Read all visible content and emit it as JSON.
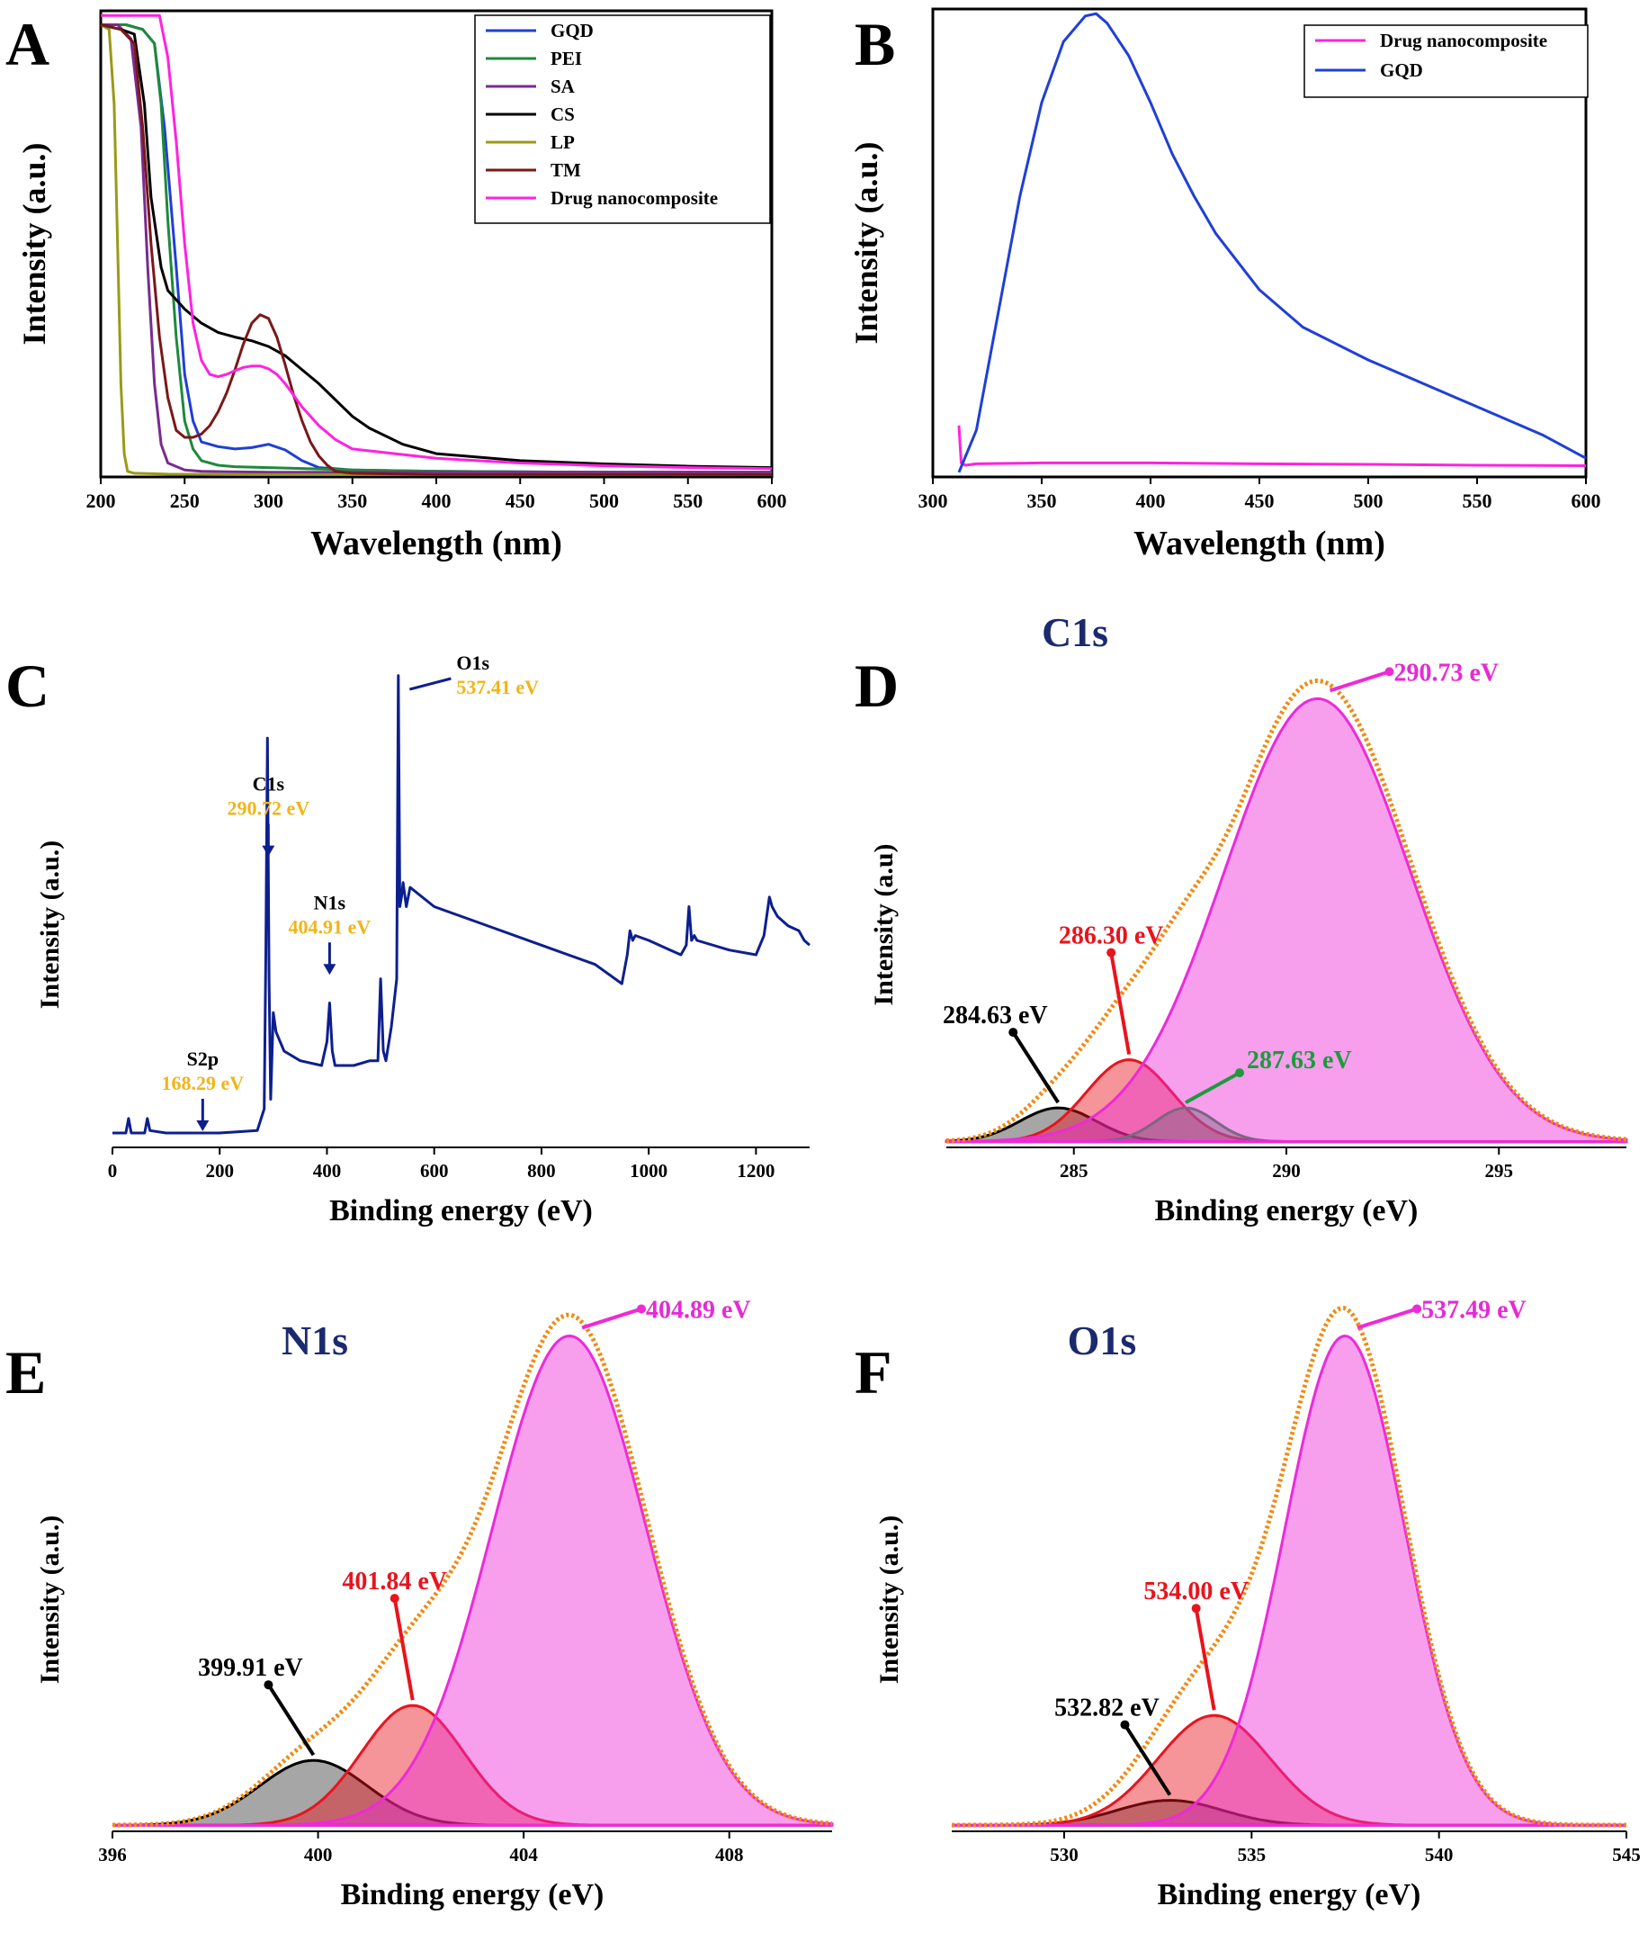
{
  "figure": {
    "panel_count": 6
  },
  "chart_data": [
    {
      "id": "A",
      "type": "line",
      "panel_label": "A",
      "xlabel": "Wavelength (nm)",
      "ylabel": "Intensity (a.u.)",
      "xlim": [
        200,
        600
      ],
      "ylim": [
        0,
        1.0
      ],
      "xticks": [
        200,
        250,
        300,
        350,
        400,
        450,
        500,
        550,
        600
      ],
      "grid": false,
      "legend": "top-right",
      "series": [
        {
          "name": "GQD",
          "color": "#1f3fd6",
          "x": [
            200,
            215,
            225,
            232,
            238,
            245,
            250,
            255,
            260,
            270,
            280,
            290,
            300,
            310,
            320,
            330,
            350,
            400,
            500,
            600
          ],
          "values": [
            0.97,
            0.97,
            0.96,
            0.93,
            0.75,
            0.45,
            0.22,
            0.12,
            0.075,
            0.065,
            0.06,
            0.063,
            0.07,
            0.058,
            0.035,
            0.02,
            0.015,
            0.012,
            0.01,
            0.01
          ]
        },
        {
          "name": "PEI",
          "color": "#1e8a3a",
          "x": [
            200,
            215,
            225,
            232,
            236,
            240,
            245,
            250,
            255,
            260,
            270,
            280,
            300,
            350,
            400,
            500,
            600
          ],
          "values": [
            0.97,
            0.97,
            0.96,
            0.93,
            0.8,
            0.55,
            0.3,
            0.12,
            0.06,
            0.035,
            0.025,
            0.022,
            0.02,
            0.015,
            0.012,
            0.01,
            0.01
          ]
        },
        {
          "name": "SA",
          "color": "#7b2a8f",
          "x": [
            200,
            210,
            218,
            224,
            228,
            232,
            236,
            240,
            250,
            260,
            300,
            400,
            600
          ],
          "values": [
            0.97,
            0.97,
            0.94,
            0.75,
            0.45,
            0.2,
            0.07,
            0.03,
            0.015,
            0.012,
            0.01,
            0.01,
            0.01
          ]
        },
        {
          "name": "CS",
          "color": "#000000",
          "x": [
            200,
            212,
            220,
            226,
            230,
            236,
            240,
            250,
            260,
            270,
            280,
            290,
            300,
            310,
            320,
            330,
            340,
            350,
            360,
            380,
            400,
            450,
            500,
            550,
            600
          ],
          "values": [
            0.97,
            0.96,
            0.95,
            0.8,
            0.6,
            0.45,
            0.4,
            0.36,
            0.33,
            0.31,
            0.3,
            0.292,
            0.28,
            0.26,
            0.23,
            0.2,
            0.165,
            0.13,
            0.105,
            0.07,
            0.05,
            0.035,
            0.028,
            0.023,
            0.02
          ]
        },
        {
          "name": "LP",
          "color": "#9a9a18",
          "x": [
            200,
            205,
            208,
            210,
            212,
            214,
            216,
            220,
            240,
            300,
            600
          ],
          "values": [
            0.97,
            0.96,
            0.8,
            0.5,
            0.2,
            0.05,
            0.012,
            0.008,
            0.006,
            0.005,
            0.005
          ]
        },
        {
          "name": "TM",
          "color": "#7a1818",
          "x": [
            200,
            212,
            220,
            225,
            230,
            235,
            240,
            245,
            250,
            255,
            260,
            265,
            270,
            275,
            280,
            285,
            290,
            295,
            300,
            305,
            310,
            315,
            320,
            325,
            330,
            335,
            340,
            350,
            400,
            600
          ],
          "values": [
            0.97,
            0.96,
            0.93,
            0.75,
            0.5,
            0.3,
            0.17,
            0.1,
            0.085,
            0.085,
            0.092,
            0.11,
            0.14,
            0.18,
            0.23,
            0.285,
            0.33,
            0.348,
            0.34,
            0.3,
            0.24,
            0.175,
            0.12,
            0.075,
            0.045,
            0.025,
            0.012,
            0.008,
            0.005,
            0.005
          ]
        },
        {
          "name": "Drug nanocomposite",
          "color": "#ff22e0",
          "x": [
            200,
            235,
            240,
            245,
            250,
            255,
            260,
            265,
            270,
            275,
            280,
            285,
            290,
            295,
            300,
            305,
            310,
            315,
            320,
            330,
            340,
            350,
            400,
            450,
            500,
            550,
            600
          ],
          "values": [
            0.99,
            0.99,
            0.9,
            0.72,
            0.5,
            0.33,
            0.25,
            0.22,
            0.215,
            0.22,
            0.228,
            0.235,
            0.238,
            0.238,
            0.232,
            0.22,
            0.2,
            0.175,
            0.15,
            0.11,
            0.08,
            0.06,
            0.04,
            0.03,
            0.024,
            0.02,
            0.018
          ]
        }
      ]
    },
    {
      "id": "B",
      "type": "line",
      "panel_label": "B",
      "xlabel": "Wavelength (nm)",
      "ylabel": "Intensity (a.u.)",
      "xlim": [
        300,
        600
      ],
      "ylim": [
        0,
        1.0
      ],
      "xticks": [
        300,
        350,
        400,
        450,
        500,
        550,
        600
      ],
      "grid": false,
      "legend": "top-right",
      "series": [
        {
          "name": "Drug nanocomposite",
          "color": "#ff22e0",
          "x": [
            312,
            313,
            315,
            320,
            350,
            400,
            450,
            500,
            550,
            600
          ],
          "values": [
            0.11,
            0.03,
            0.025,
            0.028,
            0.03,
            0.03,
            0.028,
            0.027,
            0.025,
            0.024
          ]
        },
        {
          "name": "GQD",
          "color": "#1f3fd6",
          "x": [
            312,
            320,
            330,
            340,
            350,
            360,
            370,
            375,
            380,
            390,
            400,
            410,
            420,
            430,
            440,
            450,
            470,
            500,
            520,
            540,
            560,
            580,
            600
          ],
          "values": [
            0.01,
            0.1,
            0.35,
            0.6,
            0.8,
            0.93,
            0.985,
            0.99,
            0.97,
            0.9,
            0.8,
            0.69,
            0.6,
            0.52,
            0.46,
            0.4,
            0.32,
            0.25,
            0.21,
            0.17,
            0.13,
            0.09,
            0.04
          ]
        }
      ]
    },
    {
      "id": "C",
      "type": "line",
      "panel_label": "C",
      "xlabel": "Binding energy (eV)",
      "ylabel": "Intensity (a.u.)",
      "xlim": [
        0,
        1300
      ],
      "ylim": [
        0,
        1.0
      ],
      "xticks": [
        0,
        200,
        400,
        600,
        800,
        1000,
        1200
      ],
      "grid": false,
      "series": [
        {
          "name": "",
          "color": "#0d1f8f",
          "x": [
            0,
            25,
            30,
            35,
            60,
            65,
            70,
            100,
            150,
            200,
            270,
            283,
            286,
            289,
            292,
            295,
            300,
            305,
            320,
            350,
            390,
            400,
            405,
            410,
            415,
            450,
            480,
            495,
            500,
            505,
            510,
            520,
            530,
            533,
            536,
            539,
            542,
            548,
            555,
            600,
            700,
            800,
            900,
            950,
            960,
            965,
            970,
            975,
            1000,
            1040,
            1060,
            1070,
            1075,
            1080,
            1085,
            1090,
            1150,
            1200,
            1215,
            1225,
            1230,
            1240,
            1260,
            1280,
            1290,
            1300
          ],
          "values": [
            0.03,
            0.03,
            0.06,
            0.03,
            0.03,
            0.06,
            0.035,
            0.03,
            0.03,
            0.03,
            0.035,
            0.08,
            0.4,
            0.85,
            0.35,
            0.1,
            0.28,
            0.24,
            0.2,
            0.18,
            0.17,
            0.22,
            0.3,
            0.2,
            0.17,
            0.17,
            0.18,
            0.18,
            0.35,
            0.2,
            0.18,
            0.25,
            0.35,
            0.98,
            0.5,
            0.52,
            0.55,
            0.5,
            0.54,
            0.5,
            0.46,
            0.42,
            0.38,
            0.34,
            0.4,
            0.45,
            0.43,
            0.44,
            0.43,
            0.41,
            0.4,
            0.42,
            0.5,
            0.43,
            0.44,
            0.43,
            0.41,
            0.4,
            0.44,
            0.52,
            0.5,
            0.48,
            0.46,
            0.45,
            0.43,
            0.42
          ]
        }
      ],
      "annotations": [
        {
          "name": "S2p",
          "value": "168.29 eV",
          "x": 168.29
        },
        {
          "name": "C1s",
          "value": "290.72 eV",
          "x": 290.72
        },
        {
          "name": "N1s",
          "value": "404.91 eV",
          "x": 404.91
        },
        {
          "name": "O1s",
          "value": "537.41 eV",
          "x": 537.41
        }
      ]
    },
    {
      "id": "D",
      "type": "area",
      "panel_label": "D",
      "title": "C1s",
      "xlabel": "Binding energy (eV)",
      "ylabel": "Intensity (a.u)",
      "xlim": [
        282,
        298
      ],
      "ylim": [
        0,
        1.0
      ],
      "xticks": [
        285,
        290,
        295
      ],
      "grid": false,
      "peaks": [
        {
          "label": "284.63 eV",
          "center": 284.63,
          "height": 0.07,
          "width": 0.9,
          "color": "#000000"
        },
        {
          "label": "286.30 eV",
          "center": 286.3,
          "height": 0.17,
          "width": 1.0,
          "color": "#e8141e"
        },
        {
          "label": "287.63 eV",
          "center": 287.63,
          "height": 0.07,
          "width": 0.7,
          "color": "#1e9a3e"
        },
        {
          "label": "290.73 eV",
          "center": 290.73,
          "height": 0.92,
          "width": 2.2,
          "color": "#ee2ad8"
        }
      ],
      "envelope_color": "#f08a12"
    },
    {
      "id": "E",
      "type": "area",
      "panel_label": "E",
      "title": "N1s",
      "xlabel": "Binding energy (eV)",
      "ylabel": "Intensity (a.u.)",
      "xlim": [
        396,
        410
      ],
      "ylim": [
        0,
        1.0
      ],
      "xticks": [
        396,
        400,
        404,
        408
      ],
      "grid": false,
      "peaks": [
        {
          "label": "399.91 eV",
          "center": 399.91,
          "height": 0.13,
          "width": 1.05,
          "color": "#000000"
        },
        {
          "label": "401.84 eV",
          "center": 401.84,
          "height": 0.24,
          "width": 1.0,
          "color": "#e8141e"
        },
        {
          "label": "404.89 eV",
          "center": 404.89,
          "height": 0.98,
          "width": 1.5,
          "color": "#ee2ad8"
        }
      ],
      "envelope_color": "#f08a12"
    },
    {
      "id": "F",
      "type": "area",
      "panel_label": "F",
      "title": "O1s",
      "xlabel": "Binding energy (eV)",
      "ylabel": "Intensity (a.u.)",
      "xlim": [
        527,
        545
      ],
      "ylim": [
        0,
        1.0
      ],
      "xticks": [
        530,
        535,
        540,
        545
      ],
      "grid": false,
      "peaks": [
        {
          "label": "532.82 eV",
          "center": 532.82,
          "height": 0.05,
          "width": 1.4,
          "color": "#000000"
        },
        {
          "label": "534.00 eV",
          "center": 534.0,
          "height": 0.22,
          "width": 1.5,
          "color": "#e8141e"
        },
        {
          "label": "537.49 eV",
          "center": 537.49,
          "height": 0.98,
          "width": 1.6,
          "color": "#ee2ad8"
        }
      ],
      "envelope_color": "#f08a12"
    }
  ]
}
